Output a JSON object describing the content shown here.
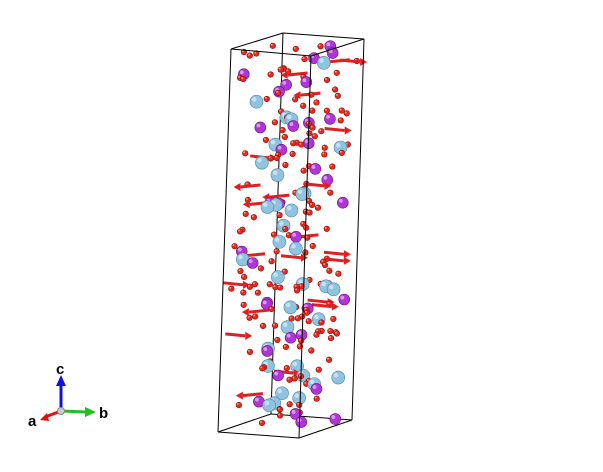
{
  "structure": {
    "species": [
      {
        "name": "large-atom",
        "color": "#8fc3e0",
        "edge": "#4f86a6",
        "count": 34
      },
      {
        "name": "medium-atom",
        "color": "#b035d6",
        "edge": "#6a1787",
        "count": 34
      },
      {
        "name": "small-atom",
        "color": "#e8281c",
        "edge": "#8a0f08",
        "count": 170
      }
    ],
    "magnetic_moment_color": "#e02020",
    "moment_count": 22,
    "cell_line_color": "#000000"
  },
  "axes": {
    "a": {
      "label": "a",
      "color": "#e01010"
    },
    "b": {
      "label": "b",
      "color": "#20c020"
    },
    "c": {
      "label": "c",
      "color": "#1010e0"
    }
  }
}
